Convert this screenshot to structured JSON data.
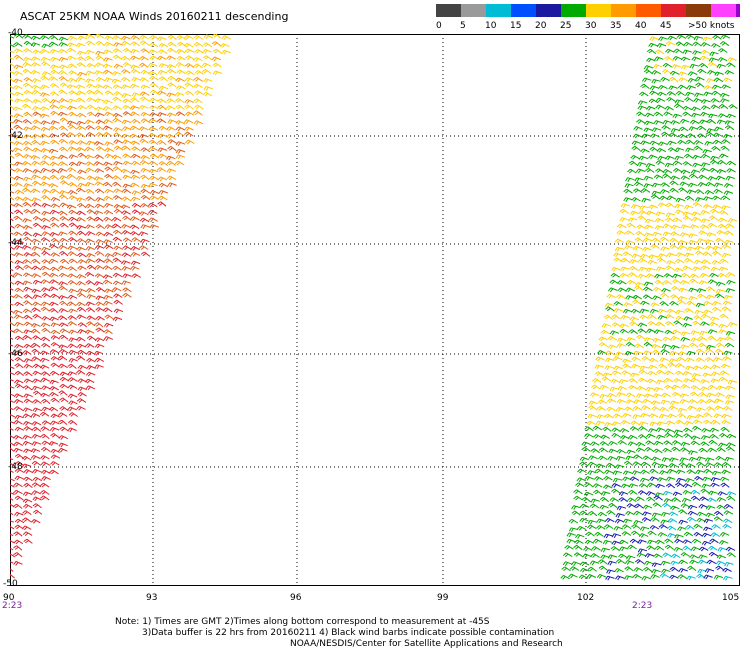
{
  "title": "ASCAT 25KM NOAA Winds 20160211 descending",
  "legend": {
    "colors": [
      "#444444",
      "#9a9a9a",
      "#00bcd4",
      "#0050ff",
      "#1a1aa0",
      "#00aa00",
      "#ffd000",
      "#ff9a00",
      "#ff5a00",
      "#e0202a",
      "#8b3a0a",
      "#ff40ff",
      "#9900cc"
    ],
    "labels": [
      "0",
      "5",
      "10",
      "15",
      "20",
      "25",
      "30",
      "35",
      "40",
      "45",
      ">50 knots"
    ]
  },
  "map": {
    "lat_labels": [
      "-40",
      "-42",
      "-44",
      "-46",
      "-48",
      "-50"
    ],
    "lon_labels": [
      "90",
      "93",
      "96",
      "99",
      "102",
      "105"
    ],
    "pass_times": [
      "2:23",
      "2:23"
    ],
    "barb_colors": {
      "left_top": "#ffd000",
      "left_upper": "#ff9a00",
      "left_mid": "#e05a1a",
      "left_lower": "#e0202a",
      "right_green": "#00aa00",
      "right_yellow": "#ffd000",
      "right_blue": "#1a1ab0",
      "right_lightblue": "#00bcd4"
    }
  },
  "notes": {
    "line1": "Note: 1) Times are GMT 2)Times along bottom correspond to measurement at -45S",
    "line2": "3)Data buffer is 22 hrs from 20160211 4) Black wind barbs indicate possible contamination",
    "line3": "NOAA/NESDIS/Center for Satellite Applications and Research"
  }
}
